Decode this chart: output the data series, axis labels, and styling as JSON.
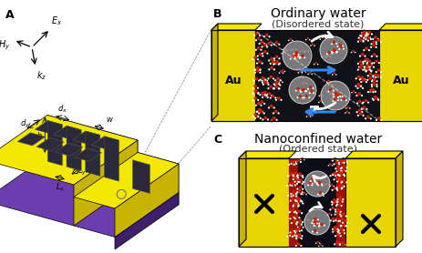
{
  "panel_A_label": "A",
  "panel_B_label": "B",
  "panel_C_label": "C",
  "title_B": "Ordinary water",
  "subtitle_B": "(Disordered state)",
  "title_C": "Nanoconfined water",
  "subtitle_C": "(Ordered state)",
  "au_label": "Au",
  "yellow_top": "#F5E800",
  "yellow_front": "#E8D400",
  "yellow_side": "#C8B400",
  "purple_front": "#5B2D8E",
  "purple_side": "#3D1F6E",
  "purple_top": "#6B3DAE",
  "slot_color": "#2a2a3a",
  "slot_edge": "#555555",
  "label_fontsize": 9,
  "title_B_fontsize": 10,
  "subtitle_fontsize": 8,
  "axis_fontsize": 7
}
